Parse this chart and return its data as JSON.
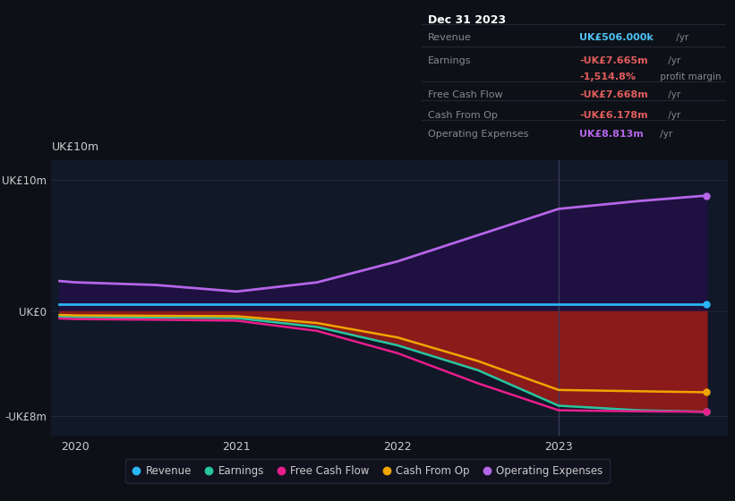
{
  "background_color": "#0d1117",
  "plot_bg_color": "#111827",
  "title_box": {
    "date": "Dec 31 2023",
    "rows": [
      {
        "label": "Revenue",
        "value": "UK£506.000k",
        "suffix": " /yr",
        "value_color": "#4fc3f7",
        "label_color": "#888888"
      },
      {
        "label": "Earnings",
        "value": "-UK£7.665m",
        "suffix": " /yr",
        "value_color": "#e05c5c",
        "label_color": "#888888"
      },
      {
        "label": "",
        "value": "-1,514.8%",
        "suffix": " profit margin",
        "value_color": "#e05c5c",
        "label_color": "#888888"
      },
      {
        "label": "Free Cash Flow",
        "value": "-UK£7.668m",
        "suffix": " /yr",
        "value_color": "#e05c5c",
        "label_color": "#888888"
      },
      {
        "label": "Cash From Op",
        "value": "-UK£6.178m",
        "suffix": " /yr",
        "value_color": "#e05c5c",
        "label_color": "#888888"
      },
      {
        "label": "Operating Expenses",
        "value": "UK£8.813m",
        "suffix": " /yr",
        "value_color": "#b565e8",
        "label_color": "#888888"
      }
    ]
  },
  "years": [
    2019.9,
    2020.0,
    2020.5,
    2021.0,
    2021.5,
    2022.0,
    2022.5,
    2023.0,
    2023.5,
    2023.92
  ],
  "Revenue": [
    0.506,
    0.506,
    0.506,
    0.506,
    0.506,
    0.506,
    0.506,
    0.506,
    0.506,
    0.506
  ],
  "Earnings": [
    -0.4,
    -0.45,
    -0.48,
    -0.52,
    -1.2,
    -2.6,
    -4.5,
    -7.2,
    -7.55,
    -7.665
  ],
  "Free_Cash_Flow": [
    -0.55,
    -0.6,
    -0.65,
    -0.72,
    -1.5,
    -3.2,
    -5.5,
    -7.55,
    -7.63,
    -7.668
  ],
  "Cash_From_Op": [
    -0.28,
    -0.32,
    -0.35,
    -0.38,
    -0.9,
    -2.0,
    -3.8,
    -6.0,
    -6.1,
    -6.178
  ],
  "Operating_Expenses": [
    2.3,
    2.2,
    2.0,
    1.5,
    2.2,
    3.8,
    5.8,
    7.8,
    8.4,
    8.813
  ],
  "fill_earnings_color": "#8b1a1a",
  "fill_opex_color": "#1e1040",
  "ylim": [
    -9.5,
    11.5
  ],
  "yticks": [
    -8,
    0,
    10
  ],
  "ytick_labels": [
    "-UK£8m",
    "UK£0",
    "UK£10m"
  ],
  "ylabel_left": "UK£10m",
  "xlabel_ticks": [
    2020,
    2021,
    2022,
    2023
  ],
  "xlim": [
    2019.85,
    2024.05
  ],
  "grid_color": "#252535",
  "vline_x": 2023.0,
  "vline_color": "#3a3a5a",
  "legend": [
    {
      "label": "Revenue",
      "color": "#29b6f6"
    },
    {
      "label": "Earnings",
      "color": "#26c6a2"
    },
    {
      "label": "Free Cash Flow",
      "color": "#e91e8c"
    },
    {
      "label": "Cash From Op",
      "color": "#f0a500"
    },
    {
      "label": "Operating Expenses",
      "color": "#b565e8"
    }
  ]
}
